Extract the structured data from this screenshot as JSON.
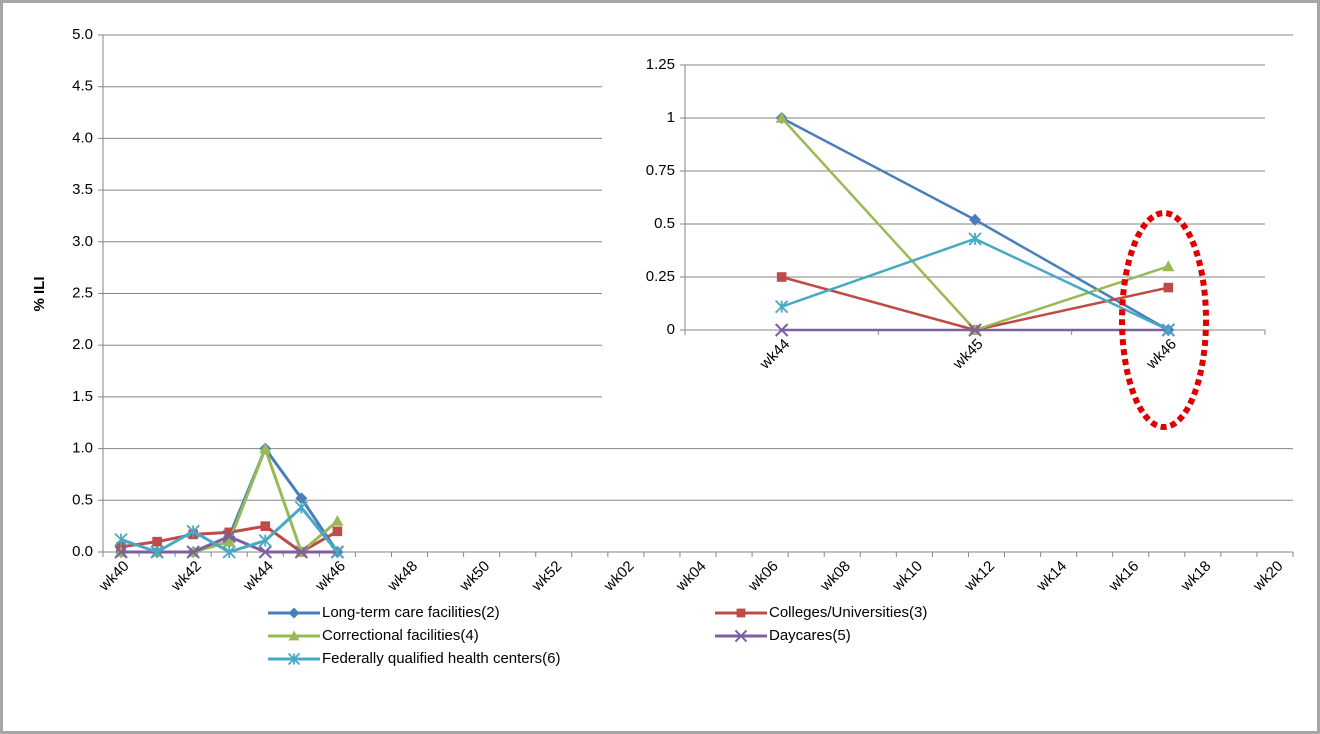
{
  "chart_data": [
    {
      "type": "line",
      "y_label": "% ILI",
      "categories": [
        "wk40",
        null,
        "wk42",
        null,
        "wk44",
        null,
        "wk46",
        null,
        "wk48",
        null,
        "wk50",
        null,
        "wk52",
        null,
        "wk02",
        null,
        "wk04",
        null,
        "wk06",
        null,
        "wk08",
        null,
        "wk10",
        null,
        "wk12",
        null,
        "wk14",
        null,
        "wk16",
        null,
        "wk18",
        null,
        "wk20"
      ],
      "ylim": [
        0,
        5
      ],
      "yticks": [
        {
          "value": 0,
          "label": "0.0"
        },
        0.5,
        {
          "value": 1,
          "label": "1.0"
        },
        1.5,
        {
          "value": 2,
          "label": "2.0"
        },
        2.5,
        {
          "value": 3,
          "label": "3.0"
        },
        3.5,
        {
          "value": 4,
          "label": "4.0"
        },
        4.5,
        {
          "value": 5,
          "label": "5.0"
        }
      ],
      "grid": true,
      "series": [
        {
          "name": "Long-term care facilities(2)",
          "color": "#4a7ebb",
          "marker": "diamond",
          "values": [
            0,
            0,
            0,
            0.15,
            1,
            0.52,
            0,
            null,
            null,
            null,
            null,
            null,
            null,
            null,
            null,
            null,
            null,
            null,
            null,
            null,
            null,
            null,
            null,
            null,
            null,
            null,
            null,
            null,
            null,
            null,
            null,
            null,
            null
          ]
        },
        {
          "name": "Colleges/Universities(3)",
          "color": "#be4b48",
          "marker": "square",
          "values": [
            0.05,
            0.1,
            0.17,
            0.19,
            0.25,
            0,
            0.2,
            null,
            null,
            null,
            null,
            null,
            null,
            null,
            null,
            null,
            null,
            null,
            null,
            null,
            null,
            null,
            null,
            null,
            null,
            null,
            null,
            null,
            null,
            null,
            null,
            null,
            null
          ]
        },
        {
          "name": "Correctional facilities(4)",
          "color": "#98b954",
          "marker": "triangle",
          "values": [
            0,
            0,
            0,
            0.1,
            1,
            0,
            0.3,
            null,
            null,
            null,
            null,
            null,
            null,
            null,
            null,
            null,
            null,
            null,
            null,
            null,
            null,
            null,
            null,
            null,
            null,
            null,
            null,
            null,
            null,
            null,
            null,
            null,
            null
          ]
        },
        {
          "name": "Daycares(5)",
          "color": "#7d60a0",
          "marker": "x",
          "values": [
            0,
            0,
            0,
            0.15,
            0,
            0,
            0,
            null,
            null,
            null,
            null,
            null,
            null,
            null,
            null,
            null,
            null,
            null,
            null,
            null,
            null,
            null,
            null,
            null,
            null,
            null,
            null,
            null,
            null,
            null,
            null,
            null,
            null
          ]
        },
        {
          "name": "Federally qualified health centers(6)",
          "color": "#46aac5",
          "marker": "star",
          "values": [
            0.12,
            0,
            0.2,
            0,
            0.11,
            0.43,
            0,
            null,
            null,
            null,
            null,
            null,
            null,
            null,
            null,
            null,
            null,
            null,
            null,
            null,
            null,
            null,
            null,
            null,
            null,
            null,
            null,
            null,
            null,
            null,
            null,
            null,
            null
          ]
        }
      ]
    },
    {
      "type": "line",
      "categories": [
        "wk44",
        "wk45",
        "wk46"
      ],
      "ylim": [
        0,
        1.25
      ],
      "yticks": [
        0,
        0.25,
        0.5,
        0.75,
        1,
        1.25
      ],
      "grid": true,
      "series": [
        {
          "color": "#4a7ebb",
          "marker": "diamond",
          "values": [
            1,
            0.52,
            0
          ]
        },
        {
          "color": "#be4b48",
          "marker": "square",
          "values": [
            0.25,
            0,
            0.2
          ]
        },
        {
          "color": "#98b954",
          "marker": "triangle",
          "values": [
            1,
            0,
            0.3
          ]
        },
        {
          "color": "#7d60a0",
          "marker": "x",
          "values": [
            0,
            0,
            0
          ]
        },
        {
          "color": "#46aac5",
          "marker": "star",
          "values": [
            0.11,
            0.43,
            0
          ]
        }
      ]
    }
  ]
}
